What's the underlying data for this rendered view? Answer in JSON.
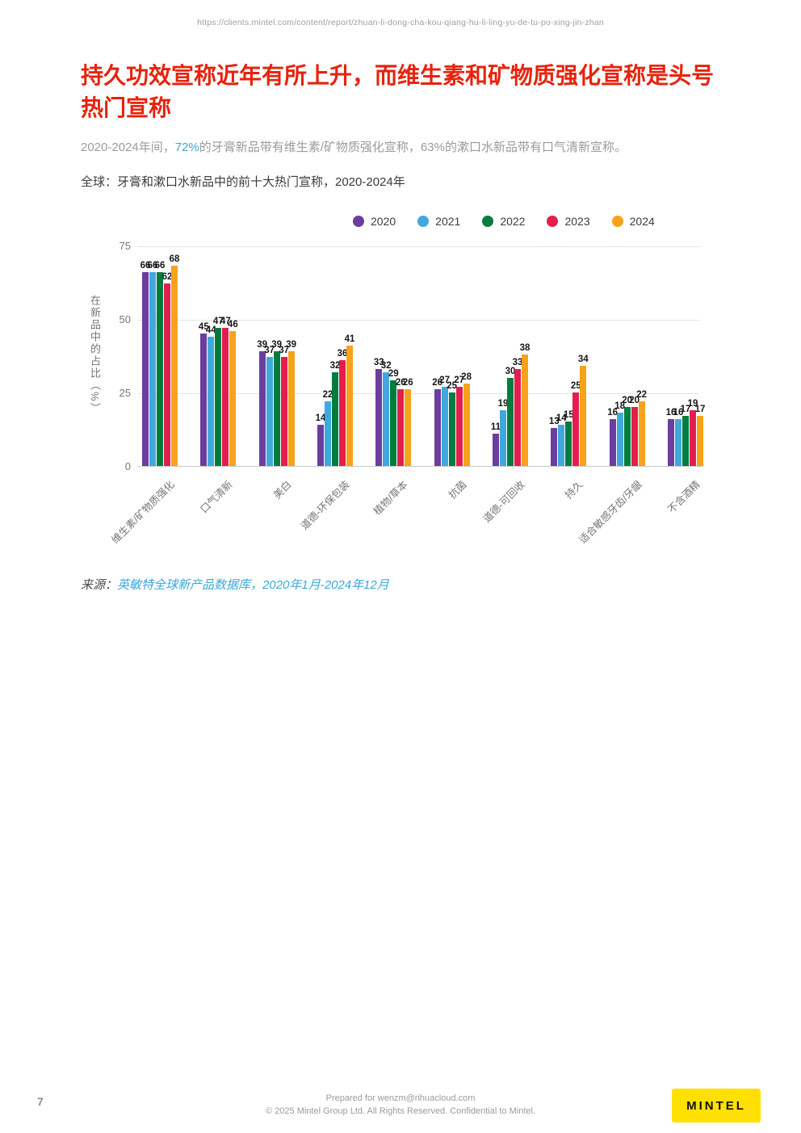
{
  "page": {
    "url": "https://clients.mintel.com/content/report/zhuan-li-dong-cha-kou-qiang-hu-li-ling-yu-de-tu-po-xing-jin-zhan",
    "title": "持久功效宣称近年有所上升，而维生素和矿物质强化宣称是头号热门宣称",
    "subtitle_prefix": "2020-2024年间，",
    "subtitle_highlight": "72%",
    "subtitle_suffix": "的牙膏新品带有维生素/矿物质强化宣称，63%的漱口水新品带有口气清新宣称。",
    "chart_heading": "全球：牙膏和漱口水新品中的前十大热门宣称，2020-2024年"
  },
  "chart_data": {
    "type": "bar",
    "title": "全球：牙膏和漱口水新品中的前十大热门宣称，2020-2024年",
    "xlabel": "",
    "ylabel": "在新品中的占比（%）",
    "ylim": [
      0,
      75
    ],
    "yticks": [
      0,
      25,
      50,
      75
    ],
    "grid": true,
    "legend_position": "top",
    "categories": [
      "维生素/矿物质强化",
      "口气清新",
      "美白",
      "道德-环保包装",
      "植物/草本",
      "抗菌",
      "道德-可回收",
      "持久",
      "适合敏感牙齿/牙龈",
      "不含酒精"
    ],
    "series": [
      {
        "name": "2020",
        "color": "#6a3d9e",
        "values": [
          66,
          45,
          39,
          14,
          33,
          26,
          11,
          13,
          16,
          16
        ]
      },
      {
        "name": "2021",
        "color": "#41a8dd",
        "values": [
          66,
          44,
          37,
          22,
          32,
          27,
          19,
          14,
          18,
          16
        ]
      },
      {
        "name": "2022",
        "color": "#007d3e",
        "values": [
          66,
          47,
          39,
          32,
          29,
          25,
          30,
          15,
          20,
          17
        ]
      },
      {
        "name": "2023",
        "color": "#e31e4f",
        "values": [
          62,
          47,
          37,
          36,
          26,
          27,
          33,
          25,
          20,
          19
        ]
      },
      {
        "name": "2024",
        "color": "#f7a21b",
        "values": [
          68,
          46,
          39,
          41,
          26,
          28,
          38,
          34,
          22,
          17
        ]
      }
    ]
  },
  "source": {
    "label": "来源：",
    "link": "英敏特全球新产品数据库，2020年1月-2024年12月"
  },
  "footer": {
    "page_number": "7",
    "prepared_for": "Prepared for wenzm@rihuacloud.com",
    "copyright": "© 2025 Mintel Group Ltd. All Rights Reserved. Confidential to Mintel.",
    "logo_text": "MINTEL"
  }
}
